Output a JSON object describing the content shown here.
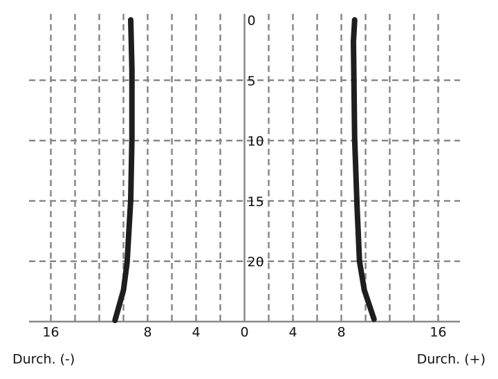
{
  "chart_data": {
    "type": "line",
    "xlabel_left": "Durch. (-)",
    "xlabel_right": "Durch. (+)",
    "xlim": [
      -17.8,
      17.8
    ],
    "ylim": [
      -0.5,
      25
    ],
    "y_inverted": true,
    "grid": true,
    "xticks": [
      {
        "value": -16,
        "label": "16"
      },
      {
        "value": -14,
        "label": null
      },
      {
        "value": -12,
        "label": null
      },
      {
        "value": -10,
        "label": null
      },
      {
        "value": -8,
        "label": "8"
      },
      {
        "value": -6,
        "label": null
      },
      {
        "value": -4,
        "label": "4"
      },
      {
        "value": -2,
        "label": null
      },
      0,
      {
        "value": 2,
        "label": null
      },
      4,
      {
        "value": 6,
        "label": null
      },
      8,
      {
        "value": 10,
        "label": null
      },
      {
        "value": 12,
        "label": null
      },
      {
        "value": 14,
        "label": null
      },
      16
    ],
    "yticks": [
      0,
      5,
      10,
      15,
      20
    ],
    "series": [
      {
        "color": "#1e1e1e",
        "x": [
          -9.4,
          -9.3,
          -9.3,
          -9.4,
          -9.7,
          -10.0,
          -10.7
        ],
        "values": [
          0,
          4.1,
          9.8,
          14.9,
          20.1,
          22.4,
          24.9
        ]
      },
      {
        "color": "#1e1e1e",
        "x": [
          9.1,
          9.0,
          9.1,
          9.3,
          9.5,
          9.9,
          10.7
        ],
        "values": [
          0,
          1.8,
          9.8,
          15.5,
          20,
          22.4,
          24.8
        ]
      }
    ]
  }
}
